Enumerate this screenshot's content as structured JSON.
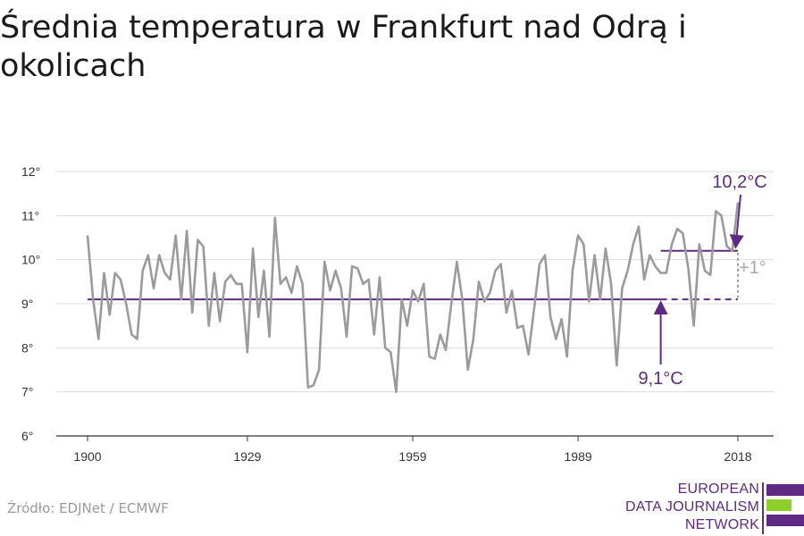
{
  "title": "Średnia temperatura w Frankfurt nad Odrą i okolicach",
  "source": "Źródło: EDJNet / ECMWF",
  "logo": {
    "lines": [
      "EUROPEAN",
      "DATA JOURNALISM",
      "NETWORK"
    ]
  },
  "colors": {
    "line": "#9b9b9b",
    "accent": "#5e2a84",
    "grid": "#dcdcdc",
    "logo_green": "#8fcf2c"
  },
  "chart_data": {
    "type": "line",
    "title": "Średnia temperatura w Frankfurt nad Odrą i okolicach",
    "xlabel": "",
    "ylabel": "",
    "x_ticks": [
      1900,
      1929,
      1959,
      1989,
      2018
    ],
    "y_ticks": [
      "6°",
      "7°",
      "8°",
      "9°",
      "10°",
      "11°",
      "12°"
    ],
    "ylim": [
      6,
      12
    ],
    "xlim": [
      1900,
      2018
    ],
    "grid": "horizontal",
    "series": [
      {
        "values": [
          [
            1900,
            10.55
          ],
          [
            1901,
            9.1
          ],
          [
            1902,
            8.2
          ],
          [
            1903,
            9.7
          ],
          [
            1904,
            8.75
          ],
          [
            1905,
            9.7
          ],
          [
            1906,
            9.55
          ],
          [
            1907,
            9.0
          ],
          [
            1908,
            8.3
          ],
          [
            1909,
            8.2
          ],
          [
            1910,
            9.75
          ],
          [
            1911,
            10.1
          ],
          [
            1912,
            9.35
          ],
          [
            1913,
            10.1
          ],
          [
            1914,
            9.7
          ],
          [
            1915,
            9.55
          ],
          [
            1916,
            10.55
          ],
          [
            1917,
            9.1
          ],
          [
            1918,
            10.65
          ],
          [
            1919,
            8.8
          ],
          [
            1920,
            10.45
          ],
          [
            1921,
            10.3
          ],
          [
            1922,
            8.5
          ],
          [
            1923,
            9.7
          ],
          [
            1924,
            8.6
          ],
          [
            1925,
            9.5
          ],
          [
            1926,
            9.65
          ],
          [
            1927,
            9.45
          ],
          [
            1928,
            9.45
          ],
          [
            1929,
            7.9
          ],
          [
            1930,
            10.25
          ],
          [
            1931,
            8.7
          ],
          [
            1932,
            9.75
          ],
          [
            1933,
            8.25
          ],
          [
            1934,
            10.95
          ],
          [
            1935,
            9.45
          ],
          [
            1936,
            9.6
          ],
          [
            1937,
            9.25
          ],
          [
            1938,
            9.85
          ],
          [
            1939,
            9.45
          ],
          [
            1940,
            7.1
          ],
          [
            1941,
            7.15
          ],
          [
            1942,
            7.5
          ],
          [
            1943,
            9.95
          ],
          [
            1944,
            9.3
          ],
          [
            1945,
            9.75
          ],
          [
            1946,
            9.35
          ],
          [
            1947,
            8.25
          ],
          [
            1948,
            9.85
          ],
          [
            1949,
            9.8
          ],
          [
            1950,
            9.45
          ],
          [
            1951,
            9.55
          ],
          [
            1952,
            8.3
          ],
          [
            1953,
            9.6
          ],
          [
            1954,
            8.0
          ],
          [
            1955,
            7.9
          ],
          [
            1956,
            7.0
          ],
          [
            1957,
            9.1
          ],
          [
            1958,
            8.5
          ],
          [
            1959,
            9.3
          ],
          [
            1960,
            9.05
          ],
          [
            1961,
            9.45
          ],
          [
            1962,
            7.8
          ],
          [
            1963,
            7.75
          ],
          [
            1964,
            8.3
          ],
          [
            1965,
            7.95
          ],
          [
            1966,
            9.0
          ],
          [
            1967,
            9.95
          ],
          [
            1968,
            9.1
          ],
          [
            1969,
            7.5
          ],
          [
            1970,
            8.2
          ],
          [
            1971,
            9.5
          ],
          [
            1972,
            9.05
          ],
          [
            1973,
            9.25
          ],
          [
            1974,
            9.75
          ],
          [
            1975,
            9.9
          ],
          [
            1976,
            8.8
          ],
          [
            1977,
            9.3
          ],
          [
            1978,
            8.45
          ],
          [
            1979,
            8.5
          ],
          [
            1980,
            7.85
          ],
          [
            1981,
            8.85
          ],
          [
            1982,
            9.9
          ],
          [
            1983,
            10.1
          ],
          [
            1984,
            8.7
          ],
          [
            1985,
            8.2
          ],
          [
            1986,
            8.65
          ],
          [
            1987,
            7.8
          ],
          [
            1988,
            9.75
          ],
          [
            1989,
            10.55
          ],
          [
            1990,
            10.35
          ],
          [
            1991,
            9.05
          ],
          [
            1992,
            10.1
          ],
          [
            1993,
            9.1
          ],
          [
            1994,
            10.25
          ],
          [
            1995,
            9.45
          ],
          [
            1996,
            7.6
          ],
          [
            1997,
            9.35
          ],
          [
            1998,
            9.75
          ],
          [
            1999,
            10.35
          ],
          [
            2000,
            10.75
          ],
          [
            2001,
            9.55
          ],
          [
            2002,
            10.1
          ],
          [
            2003,
            9.85
          ],
          [
            2004,
            9.7
          ],
          [
            2005,
            9.7
          ],
          [
            2006,
            10.35
          ],
          [
            2007,
            10.7
          ],
          [
            2008,
            10.6
          ],
          [
            2009,
            9.8
          ],
          [
            2010,
            8.5
          ],
          [
            2011,
            10.35
          ],
          [
            2012,
            9.75
          ],
          [
            2013,
            9.65
          ],
          [
            2014,
            11.1
          ],
          [
            2015,
            11.0
          ],
          [
            2016,
            10.3
          ],
          [
            2017,
            10.2
          ],
          [
            2018,
            11.3
          ]
        ]
      }
    ],
    "reference_lines": [
      {
        "label": "9,1°C",
        "value": 9.1,
        "from": 1900,
        "to": 2018,
        "solid_until": 2004
      },
      {
        "label": "10,2°C",
        "value": 10.2,
        "from": 2004,
        "to": 2018
      }
    ],
    "annotations": [
      {
        "text": "10,2°C"
      },
      {
        "text": "9,1°C"
      },
      {
        "text": "+1°"
      }
    ]
  }
}
